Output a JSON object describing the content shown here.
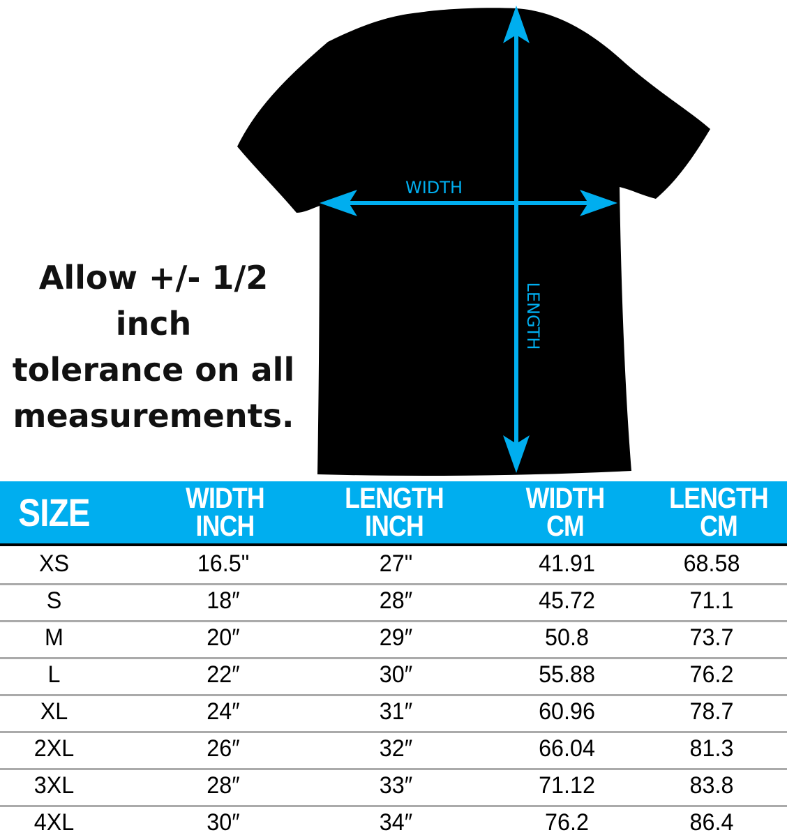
{
  "diagram": {
    "width_label": "WIDTH",
    "length_label": "LENGTH",
    "arrow_color": "#00aeef",
    "shirt_color": "#000000"
  },
  "tolerance_note": [
    "Allow +/- 1/2 inch",
    "tolerance on all",
    "measurements."
  ],
  "table": {
    "header_color": "#00aeef",
    "headers": [
      [
        "SIZE"
      ],
      [
        "WIDTH",
        "INCH"
      ],
      [
        "LENGTH",
        "INCH"
      ],
      [
        "WIDTH",
        "CM"
      ],
      [
        "LENGTH",
        "CM"
      ]
    ],
    "rows": [
      [
        "XS",
        "16.5\"",
        "27\"",
        "41.91",
        "68.58"
      ],
      [
        "S",
        "18″",
        "28″",
        "45.72",
        "71.1"
      ],
      [
        "M",
        "20″",
        "29″",
        "50.8",
        "73.7"
      ],
      [
        "L",
        "22″",
        "30″",
        "55.88",
        "76.2"
      ],
      [
        "XL",
        "24″",
        "31″",
        "60.96",
        "78.7"
      ],
      [
        "2XL",
        "26″",
        "32″",
        "66.04",
        "81.3"
      ],
      [
        "3XL",
        "28″",
        "33″",
        "71.12",
        "83.8"
      ],
      [
        "4XL",
        "30″",
        "34″",
        "76.2",
        "86.4"
      ]
    ]
  }
}
